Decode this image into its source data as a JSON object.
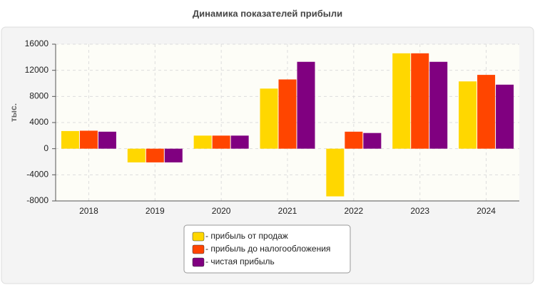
{
  "chart_data": {
    "type": "bar",
    "title": "Динамика показателей прибыли",
    "y_label": "тыс.",
    "categories": [
      "2018",
      "2019",
      "2020",
      "2021",
      "2022",
      "2023",
      "2024"
    ],
    "series": [
      {
        "name": "- прибыль от продаж",
        "color": "#ffd700",
        "values": [
          2700,
          -2100,
          2000,
          9200,
          -7300,
          14600,
          10300
        ]
      },
      {
        "name": "- прибыль до налогообложения",
        "color": "#ff4500",
        "values": [
          2750,
          -2100,
          2000,
          10600,
          2600,
          14600,
          11300
        ]
      },
      {
        "name": "- чистая прибыль",
        "color": "#800080",
        "values": [
          2600,
          -2100,
          2000,
          13300,
          2400,
          13300,
          9800
        ]
      }
    ],
    "ylim": [
      -8000,
      16000
    ],
    "yticks": [
      -8000,
      -4000,
      0,
      4000,
      8000,
      12000,
      16000
    ],
    "grid": true
  }
}
